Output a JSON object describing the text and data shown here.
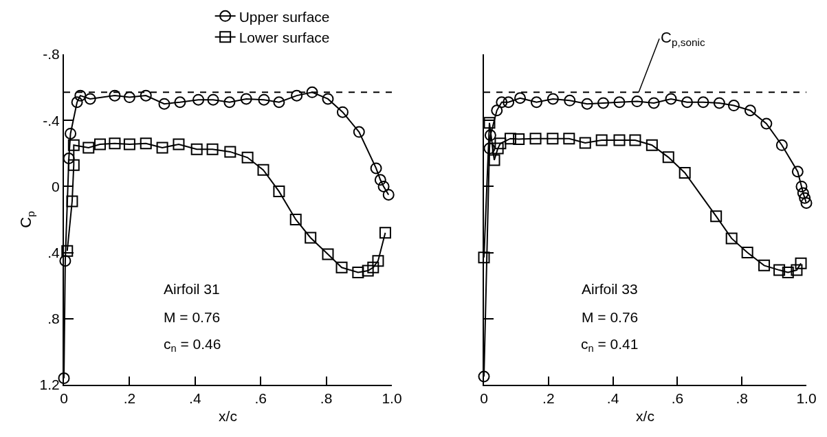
{
  "chart_data": [
    {
      "type": "line",
      "xlabel": "x/c",
      "ylabel": "C$_{p}$",
      "legend": "top",
      "line_style": "solid",
      "grid": false,
      "xlim": [
        0,
        1.0
      ],
      "xticks": [
        0,
        {
          "value": 0.2,
          "label": ".2"
        },
        {
          "value": 0.4,
          "label": ".4"
        },
        {
          "value": 0.6,
          "label": ".6"
        },
        {
          "value": 0.8,
          "label": ".8"
        },
        {
          "value": 1.0,
          "label": "1.0"
        }
      ],
      "ylim": [
        1.2,
        -0.8
      ],
      "yticks": [
        {
          "value": -0.8,
          "label": "-.8"
        },
        {
          "value": -0.4,
          "label": "-.4"
        },
        0,
        {
          "value": 0.4,
          "label": ".4"
        },
        {
          "value": 0.8,
          "label": ".8"
        },
        {
          "value": 1.2,
          "label": "1.2"
        }
      ],
      "series": [
        {
          "name": "Upper surface",
          "color": "#000000",
          "marker": "circle",
          "x": [
            0,
            0.004,
            0.015,
            0.02,
            0.04,
            0.05,
            0.08,
            0.155,
            0.2,
            0.25,
            0.306,
            0.354,
            0.41,
            0.455,
            0.505,
            0.556,
            0.61,
            0.656,
            0.71,
            0.757,
            0.805,
            0.85,
            0.9,
            0.952,
            0.965,
            0.975,
            0.99
          ],
          "values": [
            1.16,
            0.45,
            -0.17,
            -0.32,
            -0.51,
            -0.55,
            -0.53,
            -0.55,
            -0.54,
            -0.55,
            -0.5,
            -0.51,
            -0.525,
            -0.525,
            -0.51,
            -0.53,
            -0.525,
            -0.51,
            -0.55,
            -0.57,
            -0.53,
            -0.45,
            -0.33,
            -0.11,
            -0.04,
            0.0,
            0.05
          ]
        },
        {
          "name": "Lower surface",
          "color": "#000000",
          "marker": "square",
          "x": [
            0.01,
            0.025,
            0.03,
            0.03,
            0.075,
            0.11,
            0.155,
            0.2,
            0.25,
            0.3,
            0.35,
            0.405,
            0.453,
            0.507,
            0.56,
            0.608,
            0.656,
            0.707,
            0.752,
            0.805,
            0.847,
            0.897,
            0.927,
            0.943,
            0.958,
            0.98
          ],
          "values": [
            0.39,
            0.09,
            -0.13,
            -0.25,
            -0.235,
            -0.255,
            -0.26,
            -0.255,
            -0.26,
            -0.235,
            -0.255,
            -0.225,
            -0.225,
            -0.21,
            -0.175,
            -0.1,
            0.03,
            0.2,
            0.31,
            0.41,
            0.49,
            0.52,
            0.51,
            0.49,
            0.45,
            0.28
          ]
        }
      ],
      "ref_lines": [
        {
          "axis": "y",
          "value": -0.57,
          "line_style": "dashed"
        }
      ],
      "annotations": [
        "Airfoil 31",
        "M = 0.76",
        "c$_{n}$ = 0.46"
      ]
    },
    {
      "type": "line",
      "xlabel": "x/c",
      "tick_labels": "x",
      "line_style": "solid",
      "grid": false,
      "xlim": [
        0,
        1.0
      ],
      "xticks": [
        0,
        {
          "value": 0.2,
          "label": ".2"
        },
        {
          "value": 0.4,
          "label": ".4"
        },
        {
          "value": 0.6,
          "label": ".6"
        },
        {
          "value": 0.8,
          "label": ".8"
        },
        {
          "value": 1.0,
          "label": "1.0"
        }
      ],
      "ylim": [
        1.2,
        -0.8
      ],
      "yticks": [
        {
          "value": -0.8,
          "label": null
        },
        {
          "value": -0.4,
          "label": null
        },
        {
          "value": 0,
          "label": null
        },
        {
          "value": 0.4,
          "label": null
        },
        {
          "value": 0.8,
          "label": null
        },
        {
          "value": 1.2,
          "label": null
        }
      ],
      "series": [
        {
          "color": "#000000",
          "marker": "circle",
          "x": [
            0,
            0.017,
            0.02,
            0.04,
            0.055,
            0.076,
            0.112,
            0.163,
            0.214,
            0.266,
            0.32,
            0.37,
            0.42,
            0.475,
            0.527,
            0.58,
            0.63,
            0.68,
            0.73,
            0.775,
            0.826,
            0.876,
            0.924,
            0.973,
            0.985,
            0.99,
            0.995,
            1.0
          ],
          "values": [
            1.15,
            -0.23,
            -0.31,
            -0.46,
            -0.51,
            -0.51,
            -0.535,
            -0.51,
            -0.53,
            -0.52,
            -0.5,
            -0.505,
            -0.51,
            -0.515,
            -0.505,
            -0.53,
            -0.51,
            -0.51,
            -0.505,
            -0.49,
            -0.46,
            -0.38,
            -0.25,
            -0.09,
            0.0,
            0.04,
            0.07,
            0.1
          ]
        },
        {
          "color": "#000000",
          "marker": "square",
          "x": [
            0,
            0.017,
            0.032,
            0.043,
            0.051,
            0.082,
            0.108,
            0.16,
            0.213,
            0.264,
            0.314,
            0.365,
            0.42,
            0.469,
            0.521,
            0.572,
            0.623,
            0.72,
            0.768,
            0.817,
            0.869,
            0.916,
            0.943,
            0.97,
            0.983
          ],
          "values": [
            0.43,
            -0.385,
            -0.16,
            -0.23,
            -0.26,
            -0.29,
            -0.287,
            -0.29,
            -0.29,
            -0.29,
            -0.264,
            -0.28,
            -0.28,
            -0.28,
            -0.25,
            -0.177,
            -0.083,
            0.18,
            0.314,
            0.4,
            0.478,
            0.506,
            0.52,
            0.506,
            0.465
          ]
        }
      ],
      "ref_lines": [
        {
          "axis": "y",
          "value": -0.57,
          "line_style": "dashed",
          "label": "C$_{p,sonic}$"
        }
      ],
      "annotations": [
        "Airfoil 33",
        "M = 0.76",
        "c$_{n}$ = 0.41"
      ]
    }
  ]
}
